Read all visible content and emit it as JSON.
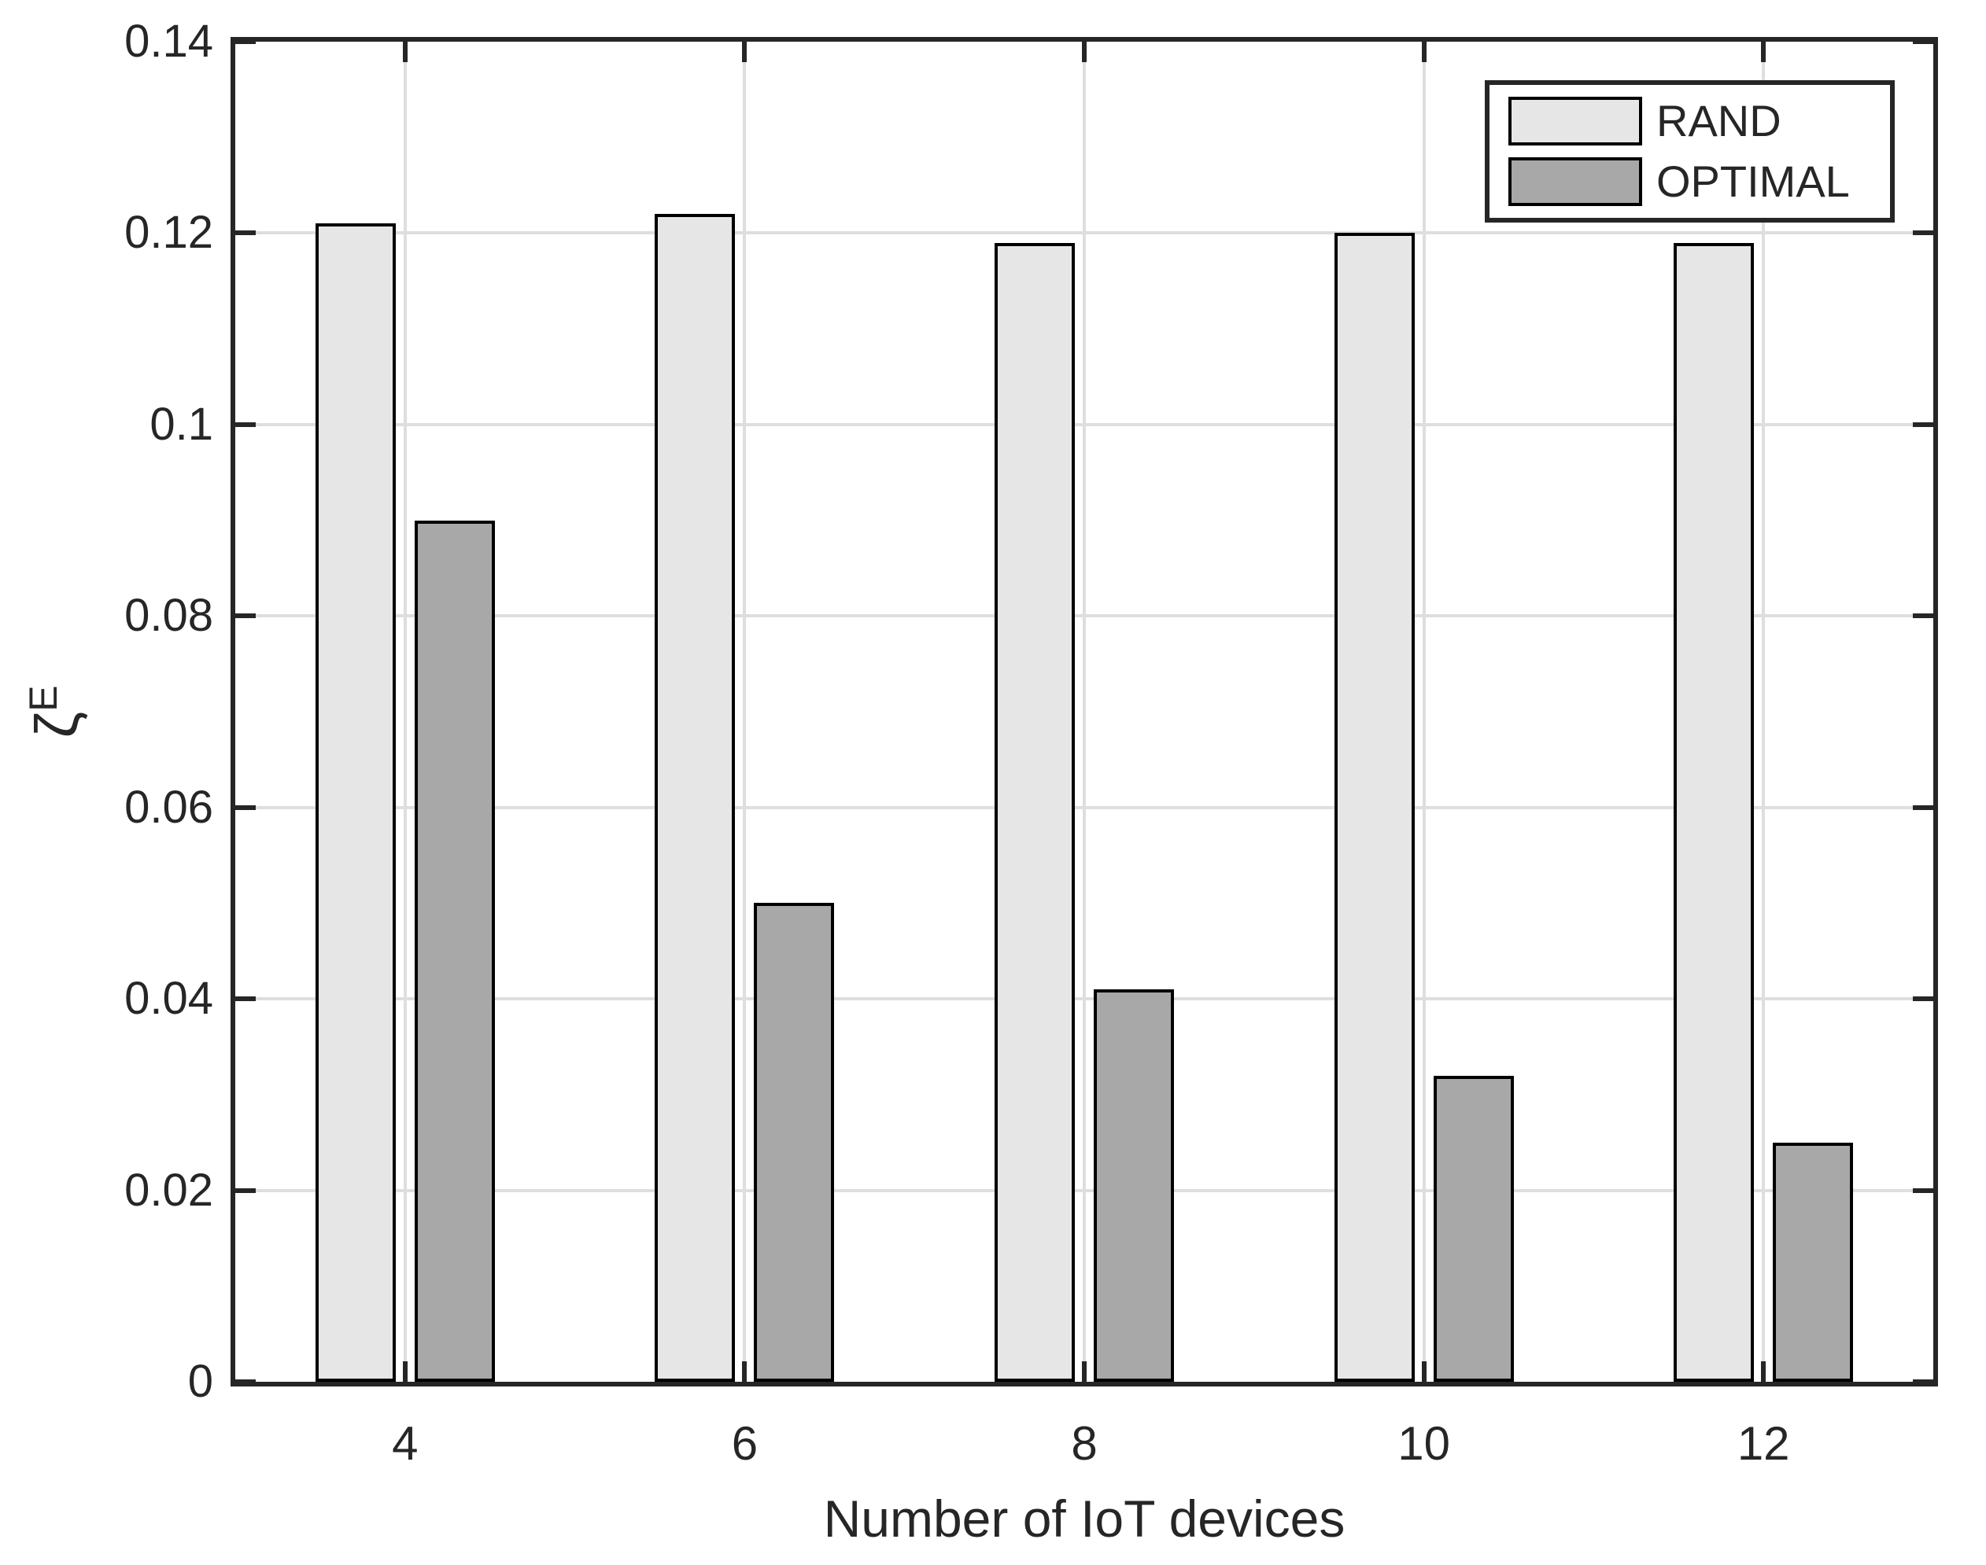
{
  "chart_data": {
    "type": "bar",
    "title": "",
    "xlabel": "Number of IoT devices",
    "ylabel": "ζ",
    "ylabel_superscript": "E",
    "categories": [
      "4",
      "6",
      "8",
      "10",
      "12"
    ],
    "series": [
      {
        "name": "RAND",
        "values": [
          0.121,
          0.122,
          0.119,
          0.12,
          0.119
        ],
        "fill": "#e6e6e6",
        "edge": "#000000"
      },
      {
        "name": "OPTIMAL",
        "values": [
          0.09,
          0.05,
          0.041,
          0.032,
          0.025
        ],
        "fill": "#a8a8a8",
        "edge": "#000000"
      }
    ],
    "ylim": [
      0,
      0.14
    ],
    "ytick_values": [
      0,
      0.02,
      0.04,
      0.06,
      0.08,
      0.1,
      0.12,
      0.14
    ],
    "ytick_labels": [
      "0",
      "0.02",
      "0.04",
      "0.06",
      "0.08",
      "0.1",
      "0.12",
      "0.14"
    ],
    "grid": true,
    "legend": {
      "position": "top-right",
      "entries": [
        "RAND",
        "OPTIMAL"
      ]
    },
    "colors": {
      "axis": "#262626",
      "grid": "#dedede",
      "background": "#ffffff",
      "text": "#262626"
    }
  }
}
